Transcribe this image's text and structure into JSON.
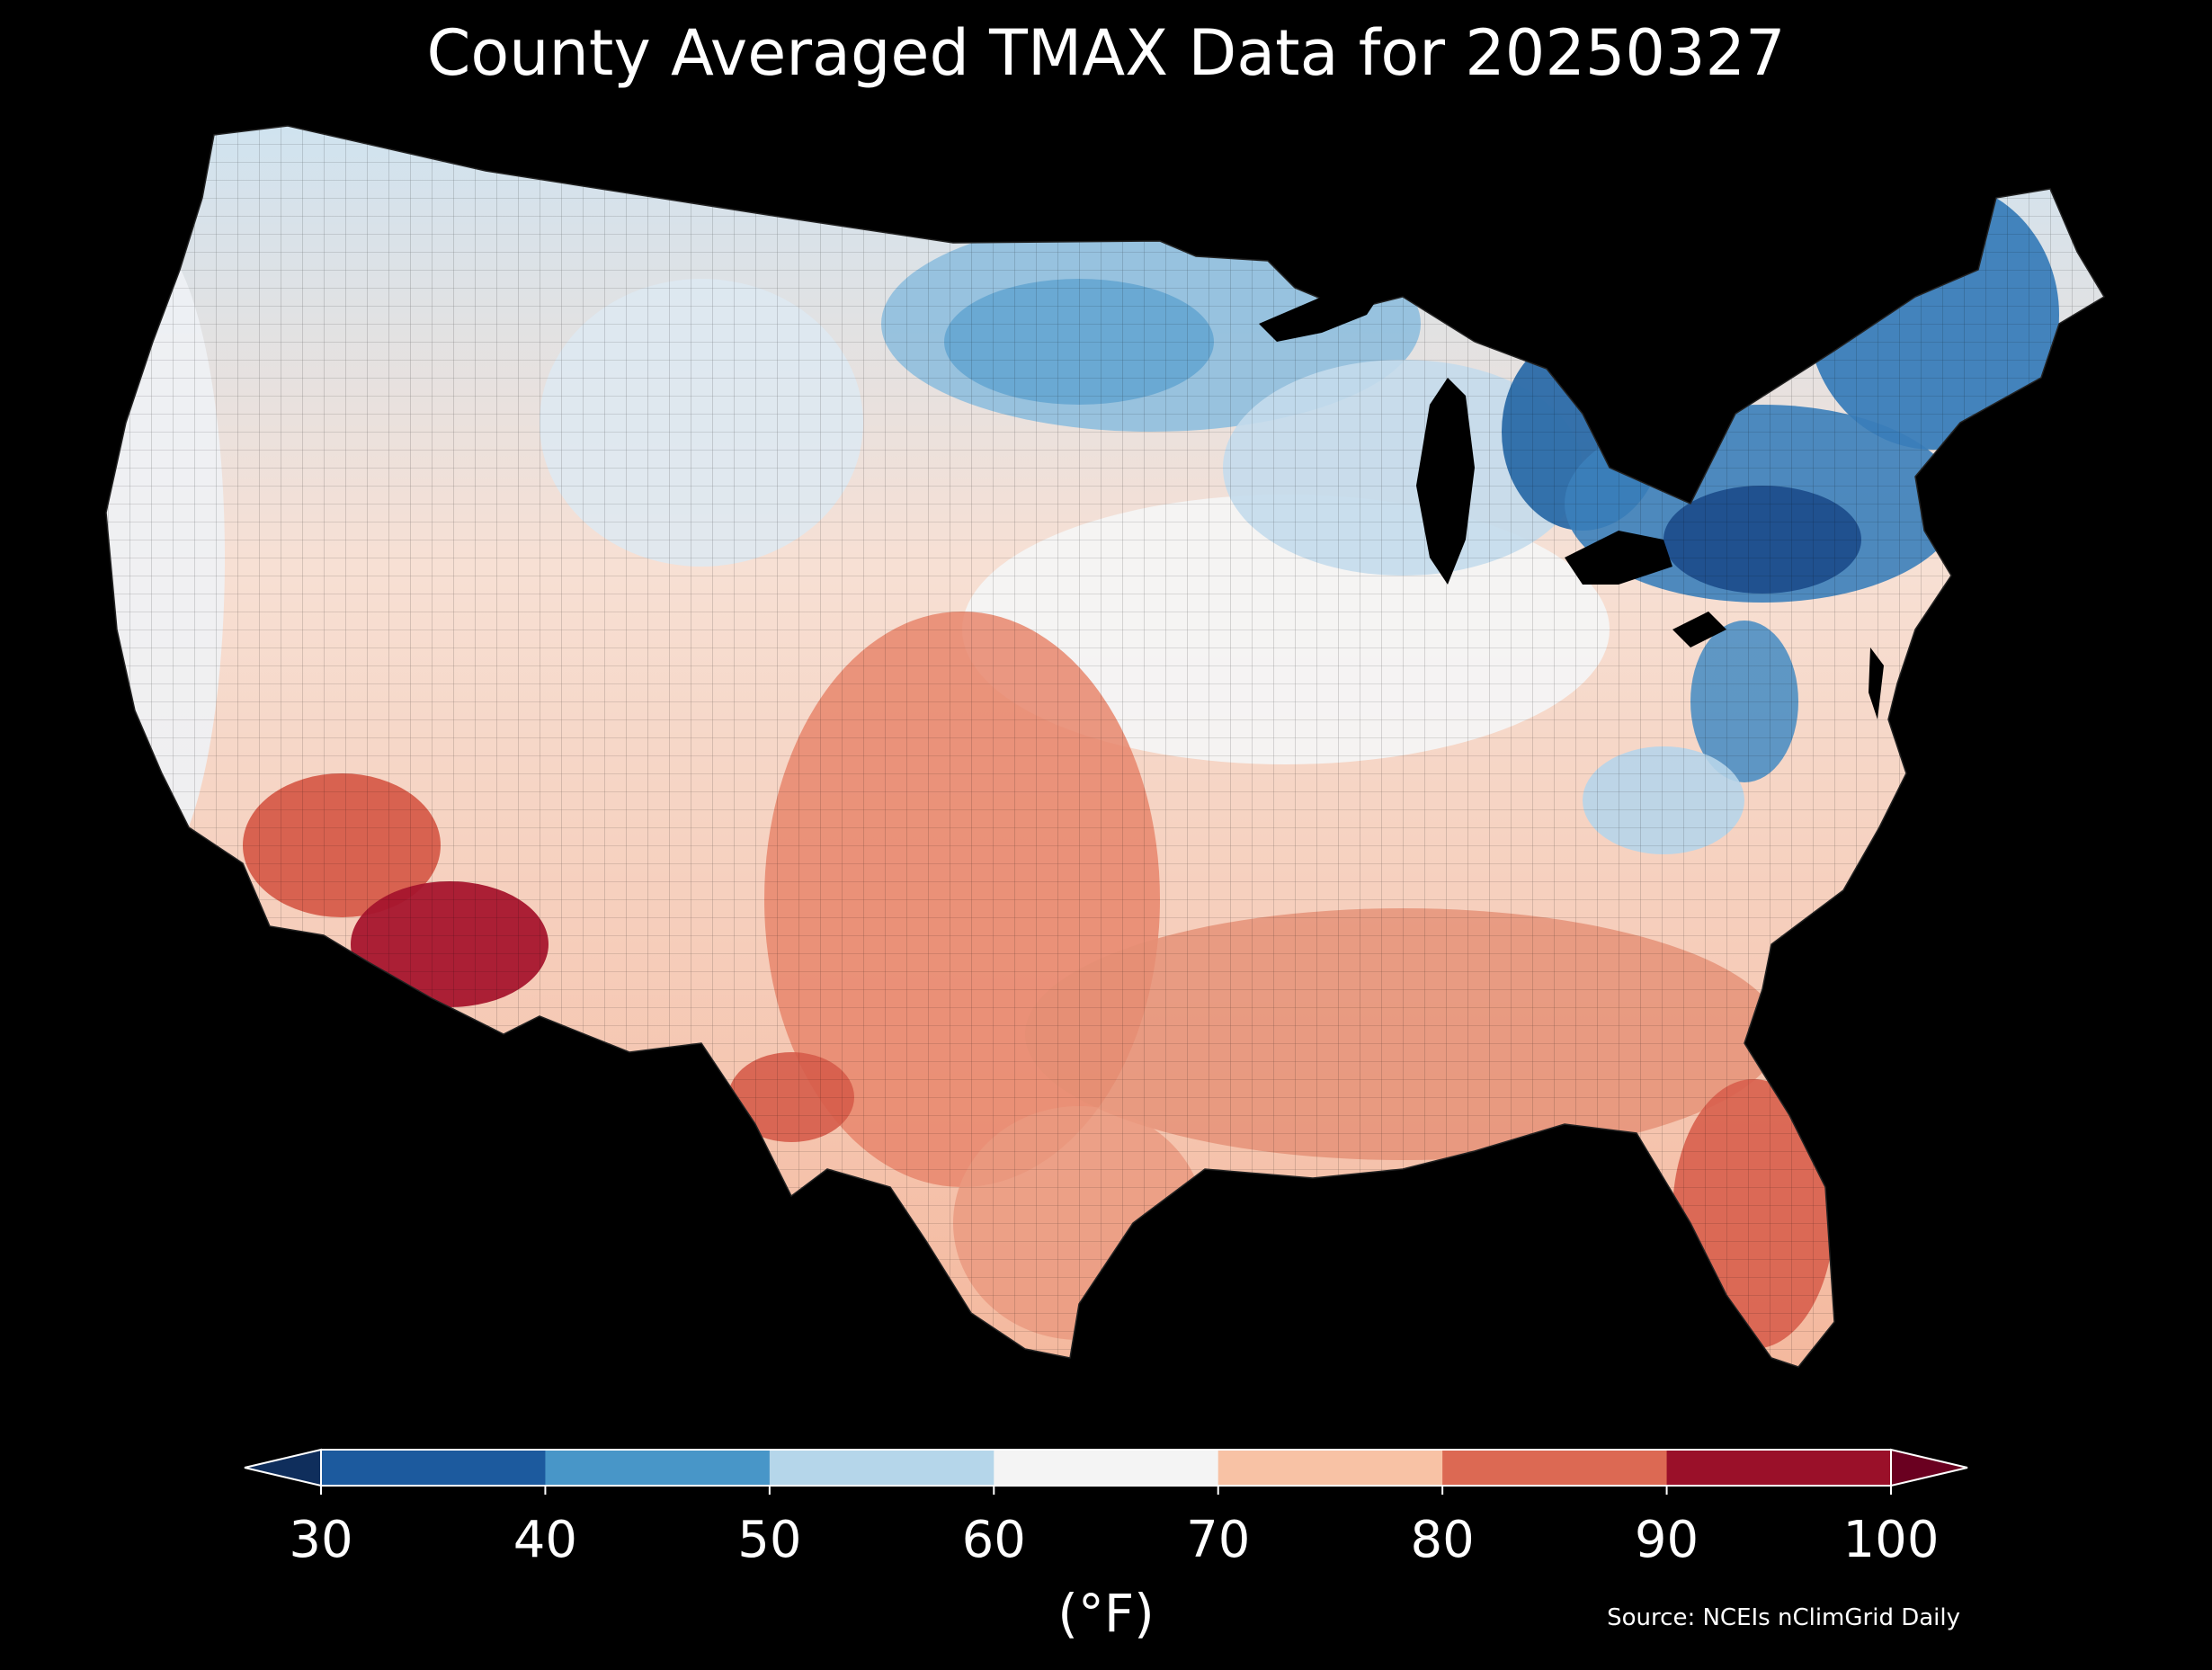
{
  "title": "County Averaged TMAX Data for 20250327",
  "colorbar": {
    "units": "(°F)",
    "ticks": [
      "30",
      "40",
      "50",
      "60",
      "70",
      "80",
      "90",
      "100"
    ],
    "bins": [
      {
        "from": 30,
        "to": 40,
        "color": "#1c5a9e"
      },
      {
        "from": 40,
        "to": 50,
        "color": "#4896c8"
      },
      {
        "from": 50,
        "to": 60,
        "color": "#b5d6ea"
      },
      {
        "from": 60,
        "to": 70,
        "color": "#f4f4f4"
      },
      {
        "from": 70,
        "to": 80,
        "color": "#f8c2a5"
      },
      {
        "from": 80,
        "to": 90,
        "color": "#dc6953"
      },
      {
        "from": 90,
        "to": 100,
        "color": "#9a1029"
      }
    ],
    "under_color": "#0f2e5c",
    "over_color": "#6a0020"
  },
  "source": "Source: NCEIs nClimGrid Daily"
}
